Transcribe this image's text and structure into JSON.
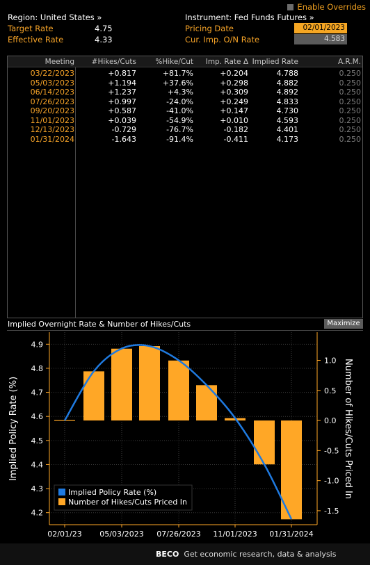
{
  "header": {
    "enable_overrides": "Enable Overrides",
    "region_label": "Region: United States »",
    "instrument_label": "Instrument: Fed Funds Futures »",
    "target_rate_label": "Target Rate",
    "target_rate_value": "4.75",
    "effective_rate_label": "Effective Rate",
    "effective_rate_value": "4.33",
    "pricing_date_label": "Pricing Date",
    "pricing_date_value": "02/01/2023",
    "cur_imp_label": "Cur. Imp. O/N Rate",
    "cur_imp_value": "4.583"
  },
  "table": {
    "columns": [
      "Meeting",
      "#Hikes/Cuts",
      "%Hike/Cut",
      "Imp. Rate Δ",
      "Implied Rate",
      "A.R.M."
    ],
    "rows": [
      {
        "meeting": "03/22/2023",
        "hikes": "+0.817",
        "pct": "+81.7%",
        "delta": "+0.204",
        "implied": "4.788",
        "arm": "0.250"
      },
      {
        "meeting": "05/03/2023",
        "hikes": "+1.194",
        "pct": "+37.6%",
        "delta": "+0.298",
        "implied": "4.882",
        "arm": "0.250"
      },
      {
        "meeting": "06/14/2023",
        "hikes": "+1.237",
        "pct": "+4.3%",
        "delta": "+0.309",
        "implied": "4.892",
        "arm": "0.250"
      },
      {
        "meeting": "07/26/2023",
        "hikes": "+0.997",
        "pct": "-24.0%",
        "delta": "+0.249",
        "implied": "4.833",
        "arm": "0.250"
      },
      {
        "meeting": "09/20/2023",
        "hikes": "+0.587",
        "pct": "-41.0%",
        "delta": "+0.147",
        "implied": "4.730",
        "arm": "0.250"
      },
      {
        "meeting": "11/01/2023",
        "hikes": "+0.039",
        "pct": "-54.9%",
        "delta": "+0.010",
        "implied": "4.593",
        "arm": "0.250"
      },
      {
        "meeting": "12/13/2023",
        "hikes": "-0.729",
        "pct": "-76.7%",
        "delta": "-0.182",
        "implied": "4.401",
        "arm": "0.250"
      },
      {
        "meeting": "01/31/2024",
        "hikes": "-1.643",
        "pct": "-91.4%",
        "delta": "-0.411",
        "implied": "4.173",
        "arm": "0.250"
      }
    ]
  },
  "chart_title": "Implied Overnight Rate & Number of Hikes/Cuts",
  "maximize_label": "Maximize",
  "footer": {
    "brand": "BECO",
    "text": "Get economic research, data & analysis"
  },
  "chart_data": {
    "type": "bar+line",
    "ylabel_left": "Implied Policy Rate (%)",
    "ylabel_right": "Number of Hikes/Cuts Priced In",
    "x_tick_labels": [
      "02/01/23",
      "05/03/2023",
      "07/26/2023",
      "11/01/2023",
      "01/31/2024"
    ],
    "left_ticks": [
      "4.2",
      "4.3",
      "4.4",
      "4.5",
      "4.6",
      "4.7",
      "4.8",
      "4.9"
    ],
    "right_ticks": [
      "1.0",
      "0.5",
      "0.0",
      "-0.5",
      "-1.0",
      "-1.5"
    ],
    "ylim_left": [
      4.15,
      4.95
    ],
    "categories": [
      "02/01/2023",
      "03/22/2023",
      "05/03/2023",
      "06/14/2023",
      "07/26/2023",
      "09/20/2023",
      "11/01/2023",
      "12/13/2023",
      "01/31/2024"
    ],
    "series": [
      {
        "name": "Implied Policy Rate (%)",
        "type": "line",
        "color": "#1f7ae0",
        "values": [
          4.583,
          4.788,
          4.882,
          4.892,
          4.833,
          4.73,
          4.593,
          4.401,
          4.173
        ]
      },
      {
        "name": "Number of Hikes/Cuts Priced In",
        "type": "bar",
        "color": "#ffa726",
        "values": [
          0.0,
          0.817,
          1.194,
          1.237,
          0.997,
          0.587,
          0.039,
          -0.729,
          -1.643
        ]
      }
    ],
    "legend_position": "bottom-left",
    "grid": true
  }
}
